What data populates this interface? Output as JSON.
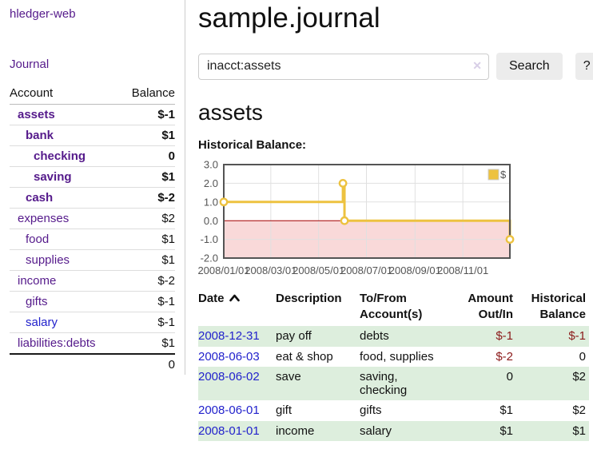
{
  "sidebar": {
    "brand": "hledger-web",
    "nav_journal": "Journal",
    "accounts_table": {
      "headers": {
        "account": "Account",
        "balance": "Balance"
      },
      "rows": [
        {
          "name": "assets",
          "indent": 1,
          "bold": true,
          "balance": "$-1",
          "balance_style": "neg-strong"
        },
        {
          "name": "bank",
          "indent": 2,
          "bold": true,
          "balance": "$1",
          "balance_style": ""
        },
        {
          "name": "checking",
          "indent": 3,
          "bold": true,
          "balance": "0",
          "balance_style": ""
        },
        {
          "name": "saving",
          "indent": 3,
          "bold": true,
          "balance": "$1",
          "balance_style": ""
        },
        {
          "name": "cash",
          "indent": 2,
          "bold": true,
          "balance": "$-2",
          "balance_style": "neg-strong"
        },
        {
          "name": "expenses",
          "indent": 1,
          "bold": false,
          "balance": "$2",
          "balance_style": ""
        },
        {
          "name": "food",
          "indent": 2,
          "bold": false,
          "balance": "$1",
          "balance_style": ""
        },
        {
          "name": "supplies",
          "indent": 2,
          "bold": false,
          "balance": "$1",
          "balance_style": ""
        },
        {
          "name": "income",
          "indent": 1,
          "bold": false,
          "balance": "$-2",
          "balance_style": "neg-soft"
        },
        {
          "name": "gifts",
          "indent": 2,
          "bold": false,
          "balance": "$-1",
          "balance_style": "neg-soft"
        },
        {
          "name": "salary",
          "indent": 2,
          "bold": false,
          "balance": "$-1",
          "balance_style": "neg-soft",
          "link_style": "blue"
        },
        {
          "name": "liabilities:debts",
          "indent": 1,
          "bold": false,
          "balance": "$1",
          "balance_style": ""
        }
      ],
      "total": "0"
    }
  },
  "main": {
    "title": "sample.journal",
    "search": {
      "value": "inacct:assets",
      "clear_icon": "✕",
      "button_label": "Search",
      "help_label": "?"
    },
    "account_heading": "assets",
    "chart_label": "Historical Balance:",
    "register": {
      "headers": {
        "date": "Date",
        "description": "Description",
        "accounts_line1": "To/From",
        "accounts_line2": "Account(s)",
        "amount_line1": "Amount",
        "amount_line2": "Out/In",
        "balance_line1": "Historical",
        "balance_line2": "Balance"
      },
      "sort_ascending": true,
      "rows": [
        {
          "date": "2008-12-31",
          "description": "pay off",
          "accounts": "debts",
          "amount": "$-1",
          "amount_style": "neg",
          "balance": "$-1",
          "balance_style": "neg"
        },
        {
          "date": "2008-06-03",
          "description": "eat & shop",
          "accounts": "food, supplies",
          "amount": "$-2",
          "amount_style": "neg",
          "balance": "0",
          "balance_style": ""
        },
        {
          "date": "2008-06-02",
          "description": "save",
          "accounts": "saving, checking",
          "amount": "0",
          "amount_style": "",
          "balance": "$2",
          "balance_style": ""
        },
        {
          "date": "2008-06-01",
          "description": "gift",
          "accounts": "gifts",
          "amount": "$1",
          "amount_style": "",
          "balance": "$2",
          "balance_style": ""
        },
        {
          "date": "2008-01-01",
          "description": "income",
          "accounts": "salary",
          "amount": "$1",
          "amount_style": "",
          "balance": "$1",
          "balance_style": ""
        }
      ]
    }
  },
  "chart_data": {
    "type": "line",
    "title": "Historical Balance",
    "step": true,
    "legend": [
      {
        "label": "$",
        "color": "#edc240"
      }
    ],
    "legend_position": "top-right",
    "x_domain_days": [
      0,
      365
    ],
    "x_ticks": [
      {
        "day": 0,
        "label": "2008/01/01"
      },
      {
        "day": 60,
        "label": "2008/03/01"
      },
      {
        "day": 121,
        "label": "2008/05/01"
      },
      {
        "day": 182,
        "label": "2008/07/01"
      },
      {
        "day": 244,
        "label": "2008/09/01"
      },
      {
        "day": 305,
        "label": "2008/11/01"
      }
    ],
    "y_ticks": [
      3.0,
      2.0,
      1.0,
      0.0,
      -1.0,
      -2.0
    ],
    "ylim": [
      -2,
      3
    ],
    "grid": true,
    "negative_region_shaded": true,
    "series": [
      {
        "name": "$",
        "points": [
          {
            "date": "2008/01/01",
            "day": 0,
            "value": 1
          },
          {
            "date": "2008/06/01",
            "day": 152,
            "value": 2
          },
          {
            "date": "2008/06/03",
            "day": 154,
            "value": 0
          },
          {
            "date": "2008/12/31",
            "day": 365,
            "value": -1
          }
        ]
      }
    ]
  },
  "colors": {
    "link-purple": "#551a8b",
    "link-blue": "#2222cc",
    "negative-strong": "#8b1a1a",
    "negative-soft": "#bf8f8f",
    "row-stripe-green": "#ddeedd",
    "chart-line-gold": "#edc240",
    "chart-negative-fill": "#f9d9d9",
    "chart-zero-line": "#a40000"
  }
}
